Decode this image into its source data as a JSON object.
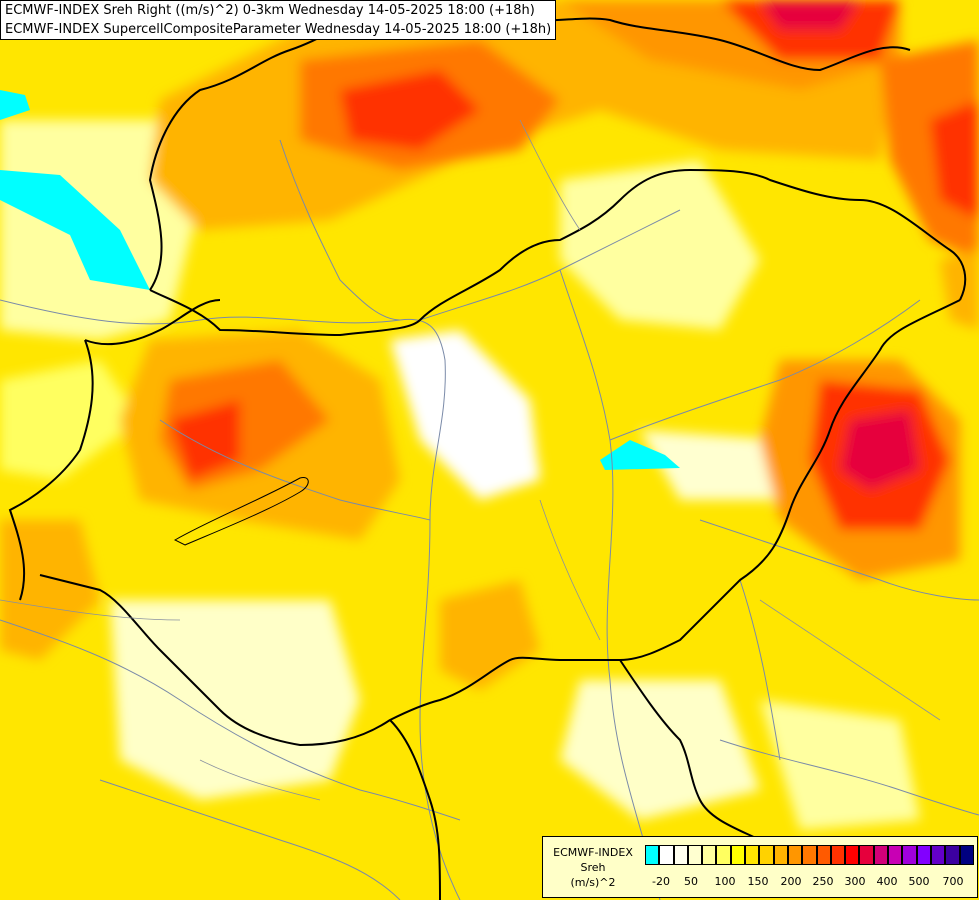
{
  "header": {
    "line1": "ECMWF-INDEX Sreh Right ((m/s)^2) 0-3km Wednesday 14-05-2025 18:00 (+18h)",
    "line2": "ECMWF-INDEX SupercellCompositeParameter Wednesday 14-05-2025 18:00 (+18h)"
  },
  "legend": {
    "title1": "ECMWF-INDEX",
    "title2": "Sreh",
    "unit": "(m/s)^2",
    "colors": [
      "#00ffff",
      "#ffffff",
      "#fffff0",
      "#ffffd0",
      "#ffffa0",
      "#ffff60",
      "#ffff00",
      "#ffe600",
      "#ffd200",
      "#ffb400",
      "#ff9600",
      "#ff7800",
      "#ff5a00",
      "#ff3200",
      "#ff0000",
      "#e6003c",
      "#d20078",
      "#c800b4",
      "#a000dc",
      "#8200ff",
      "#6400c8",
      "#3c00a0",
      "#000080"
    ],
    "ticks": [
      "-20",
      "50",
      "100",
      "150",
      "200",
      "250",
      "300",
      "400",
      "500",
      "700"
    ]
  },
  "colors": {
    "background": "#ffff00",
    "ocean_cyan": "#00ffff",
    "border": "#000000",
    "river": "#7a8aa8"
  }
}
